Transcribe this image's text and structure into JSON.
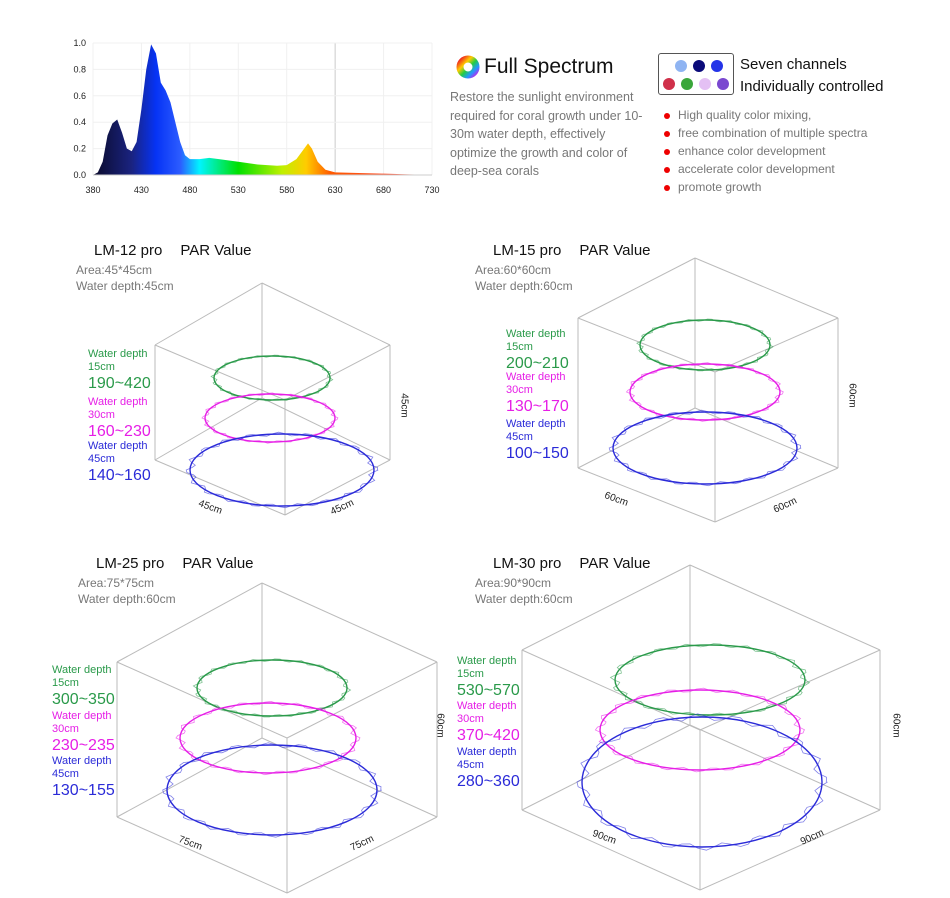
{
  "chart_data": {
    "type": "area",
    "title": "",
    "xlabel": "",
    "ylabel": "",
    "xlim": [
      380,
      730
    ],
    "ylim": [
      0,
      1.0
    ],
    "xticks": [
      380,
      430,
      480,
      530,
      580,
      630,
      680,
      730
    ],
    "yticks": [
      "0.0",
      "0.2",
      "0.4",
      "0.6",
      "0.8",
      "1.0"
    ],
    "grid": true,
    "x": [
      380,
      385,
      390,
      395,
      400,
      405,
      410,
      415,
      420,
      425,
      430,
      435,
      440,
      445,
      450,
      455,
      460,
      465,
      470,
      475,
      480,
      490,
      500,
      510,
      530,
      550,
      570,
      580,
      590,
      598,
      602,
      606,
      612,
      620,
      630,
      680,
      730
    ],
    "y": [
      0,
      0.02,
      0.1,
      0.3,
      0.39,
      0.42,
      0.32,
      0.2,
      0.18,
      0.25,
      0.5,
      0.8,
      0.99,
      0.92,
      0.7,
      0.64,
      0.55,
      0.4,
      0.25,
      0.15,
      0.12,
      0.12,
      0.13,
      0.12,
      0.1,
      0.08,
      0.07,
      0.075,
      0.12,
      0.2,
      0.24,
      0.2,
      0.1,
      0.04,
      0.02,
      0.01,
      0
    ]
  },
  "full_spectrum": {
    "title": "Full Spectrum",
    "description": "Restore the sunlight environment required for coral growth under 10-30m water depth, effectively optimize the growth and color of deep-sea corals"
  },
  "channels": {
    "title1": "Seven channels",
    "title2": "Individually controlled",
    "colors": [
      "#8fb4f2",
      "#0b0b7a",
      "#2434e8",
      "#d0304a",
      "#3aa63a",
      "#e4c0f4",
      "#7a48d0"
    ],
    "features": [
      "High quality color mixing,",
      "free combination of multiple spectra",
      "enhance color development",
      "accelerate color development",
      "promote growth"
    ]
  },
  "colors": {
    "green": "#2a9a4a",
    "pink": "#e61ee6",
    "blue": "#2b2bd8"
  },
  "panels": [
    {
      "model": "LM-12 pro",
      "par": "PAR Value",
      "area": "Area:45*45cm",
      "depth": "Water depth:45cm",
      "dims": [
        "45cm",
        "45cm",
        "45cm"
      ],
      "levels": [
        {
          "label": "Water depth",
          "cm": "15cm",
          "range": "190~420"
        },
        {
          "label": "Water depth",
          "cm": "30cm",
          "range": "160~230"
        },
        {
          "label": "Water depth",
          "cm": "45cm",
          "range": "140~160"
        }
      ]
    },
    {
      "model": "LM-15 pro",
      "par": "PAR Value",
      "area": "Area:60*60cm",
      "depth": "Water depth:60cm",
      "dims": [
        "60cm",
        "60cm",
        "60cm"
      ],
      "levels": [
        {
          "label": "Water depth",
          "cm": "15cm",
          "range": "200~210"
        },
        {
          "label": "Water depth",
          "cm": "30cm",
          "range": "130~170"
        },
        {
          "label": "Water depth",
          "cm": "45cm",
          "range": "100~150"
        }
      ]
    },
    {
      "model": "LM-25 pro",
      "par": "PAR Value",
      "area": "Area:75*75cm",
      "depth": "Water depth:60cm",
      "dims": [
        "75cm",
        "75cm",
        "60cm"
      ],
      "levels": [
        {
          "label": "Water depth",
          "cm": "15cm",
          "range": "300~350"
        },
        {
          "label": "Water depth",
          "cm": "30cm",
          "range": "230~235"
        },
        {
          "label": "Water depth",
          "cm": "45cm",
          "range": "130~155"
        }
      ]
    },
    {
      "model": "LM-30 pro",
      "par": "PAR Value",
      "area": "Area:90*90cm",
      "depth": "Water depth:60cm",
      "dims": [
        "90cm",
        "90cm",
        "60cm"
      ],
      "levels": [
        {
          "label": "Water depth",
          "cm": "15cm",
          "range": "530~570"
        },
        {
          "label": "Water depth",
          "cm": "30cm",
          "range": "370~420"
        },
        {
          "label": "Water depth",
          "cm": "45cm",
          "range": "280~360"
        }
      ]
    }
  ]
}
